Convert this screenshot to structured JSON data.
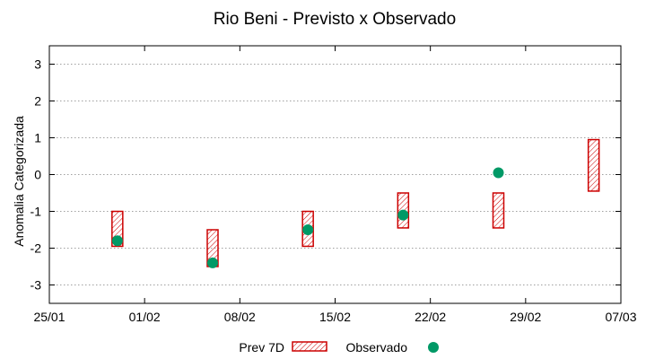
{
  "chart_data": {
    "type": "scatter",
    "title": "Rio Beni - Previsto x Observado",
    "xlabel": "",
    "ylabel": "Anomalia Categorizada",
    "x_ticks": [
      "25/01",
      "01/02",
      "08/02",
      "15/02",
      "22/02",
      "29/02",
      "07/03"
    ],
    "x_range_days": [
      0,
      42
    ],
    "ylim": [
      -3.5,
      3.5
    ],
    "y_ticks": [
      -3,
      -2,
      -1,
      0,
      1,
      2,
      3
    ],
    "grid": true,
    "legend_position": "bottom",
    "series": [
      {
        "name": "Prev 7D",
        "kind": "range-box",
        "color": "#cc0000",
        "points": [
          {
            "x": "02/02 approx",
            "day": 5.0,
            "low": -1.95,
            "high": -1.0
          },
          {
            "x": "06/02 approx",
            "day": 12.0,
            "low": -2.5,
            "high": -1.5
          },
          {
            "x": "13/02 approx",
            "day": 19.0,
            "low": -1.95,
            "high": -1.0
          },
          {
            "x": "20/02 approx",
            "day": 26.0,
            "low": -1.45,
            "high": -0.5
          },
          {
            "x": "27/02 approx",
            "day": 33.0,
            "low": -1.45,
            "high": -0.5
          },
          {
            "x": "05/03 approx",
            "day": 40.0,
            "low": -0.45,
            "high": 0.95
          }
        ]
      },
      {
        "name": "Observado",
        "kind": "point",
        "color": "#009966",
        "points": [
          {
            "day": 5.0,
            "y": -1.8
          },
          {
            "day": 12.0,
            "y": -2.4
          },
          {
            "day": 19.0,
            "y": -1.5
          },
          {
            "day": 26.0,
            "y": -1.1
          },
          {
            "day": 33.0,
            "y": 0.05
          }
        ]
      }
    ]
  }
}
